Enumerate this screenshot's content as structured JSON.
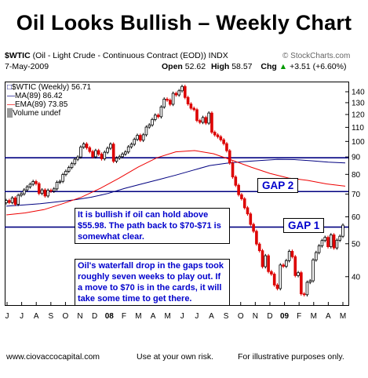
{
  "page": {
    "headline": "Oil Looks Bullish – Weekly Chart",
    "symbol": "$WTIC",
    "description": "(Oil - Light Crude - Continuous Contract (EOD)) INDX",
    "date": "7-May-2009",
    "brand": "© StockCharts.com",
    "open_label": "Open",
    "open_value": "52.62",
    "high_label": "High",
    "high_value": "58.57",
    "chg_label": "Chg",
    "chg_value": "+3.51 (+6.60%)",
    "chg_icon": "up-arrow-icon",
    "legend_main": "$WTIC (Weekly) 56.71",
    "legend_ma": "MA(89) 86.42",
    "legend_ema": "EMA(89) 73.85",
    "legend_volume": "Volume undef",
    "footer_left": "www.ciovaccocapital.com",
    "footer_mid": "Use at your own risk.",
    "footer_right": "For illustrative purposes only.",
    "colors": {
      "line": "#000080",
      "ma": "#000080",
      "ema": "#ee0000",
      "down": "#dd0000",
      "up": "#000000",
      "note": "#0000cc"
    }
  },
  "chart_data": {
    "type": "line",
    "title": "$WTIC (Weekly)",
    "x_axis_labels": [
      "J",
      "J",
      "A",
      "S",
      "O",
      "N",
      "D",
      "08",
      "F",
      "M",
      "A",
      "M",
      "J",
      "J",
      "A",
      "S",
      "O",
      "N",
      "D",
      "09",
      "F",
      "M",
      "A",
      "M"
    ],
    "y_ticks": [
      40,
      50,
      60,
      70,
      80,
      90,
      100,
      110,
      120,
      130,
      140
    ],
    "ylim": [
      33,
      150
    ],
    "y_scale": "log",
    "horizontal_lines": [
      {
        "name": "upper gap",
        "value": 89.5
      },
      {
        "name": "lower gap",
        "value": 71.2
      },
      {
        "name": "support",
        "value": 55.98
      }
    ],
    "annotations": [
      {
        "text": "GAP 2"
      },
      {
        "text": "GAP 1"
      },
      {
        "text": "It is bullish if oil can hold above $55.98.  The path back to $70-$71 is somewhat clear."
      },
      {
        "text": "Oil's waterfall drop in the gaps took roughly seven weeks to play out.  If a move to $70 is in the cards, it will take some time to get there."
      }
    ],
    "series": [
      {
        "name": "$WTIC",
        "type": "bar",
        "values": [
          67.0,
          66.1,
          68.2,
          65.3,
          69.4,
          70.1,
          72.0,
          73.5,
          74.8,
          76.2,
          75.1,
          70.3,
          72.0,
          69.1,
          71.8,
          71.4,
          72.5,
          75.8,
          76.3,
          79.9,
          81.7,
          83.8,
          86.0,
          88.6,
          90.0,
          96.2,
          98.3,
          95.8,
          93.4,
          90.1,
          94.0,
          91.7,
          88.9,
          92.9,
          95.5,
          98.2,
          87.4,
          89.3,
          90.2,
          91.8,
          93.1,
          96.4,
          98.1,
          101.4,
          104.2,
          100.8,
          104.6,
          110.2,
          111.8,
          116.0,
          119.5,
          118.2,
          126.3,
          133.2,
          132.2,
          128.6,
          138.5,
          137.0,
          140.9,
          145.1,
          134.7,
          128.9,
          125.2,
          124.0,
          115.2,
          113.8,
          117.6,
          113.2,
          121.2,
          106.4,
          104.5,
          103.2,
          101.1,
          98.5,
          93.9,
          86.4,
          78.6,
          74.3,
          69.7,
          67.8,
          63.8,
          61.2,
          57.0,
          54.4,
          49.9,
          47.7,
          42.8,
          46.1,
          41.4,
          40.7,
          37.8,
          36.9,
          43.3,
          42.9,
          44.6,
          47.5,
          45.8,
          40.3,
          41.1,
          35.6,
          35.4,
          38.5,
          38.9,
          44.8,
          47.1,
          49.3,
          51.1,
          52.2,
          49.0,
          53.1,
          48.6,
          51.2,
          52.6,
          56.71
        ]
      },
      {
        "name": "MA(89)",
        "type": "line",
        "values": [
          64.5,
          65.0,
          65.6,
          66.4,
          67.3,
          68.5,
          70.3,
          72.8,
          75.0,
          77.2,
          79.6,
          82.2,
          84.9,
          86.3,
          87.2,
          87.9,
          88.5,
          88.4,
          87.7,
          86.9,
          86.4
        ]
      },
      {
        "name": "EMA(89)",
        "type": "line",
        "values": [
          60.8,
          61.6,
          63.0,
          65.6,
          68.6,
          72.8,
          78.0,
          84.0,
          89.5,
          93.2,
          94.0,
          92.0,
          88.0,
          84.0,
          80.5,
          78.0,
          76.8,
          75.0,
          73.85
        ]
      }
    ]
  }
}
